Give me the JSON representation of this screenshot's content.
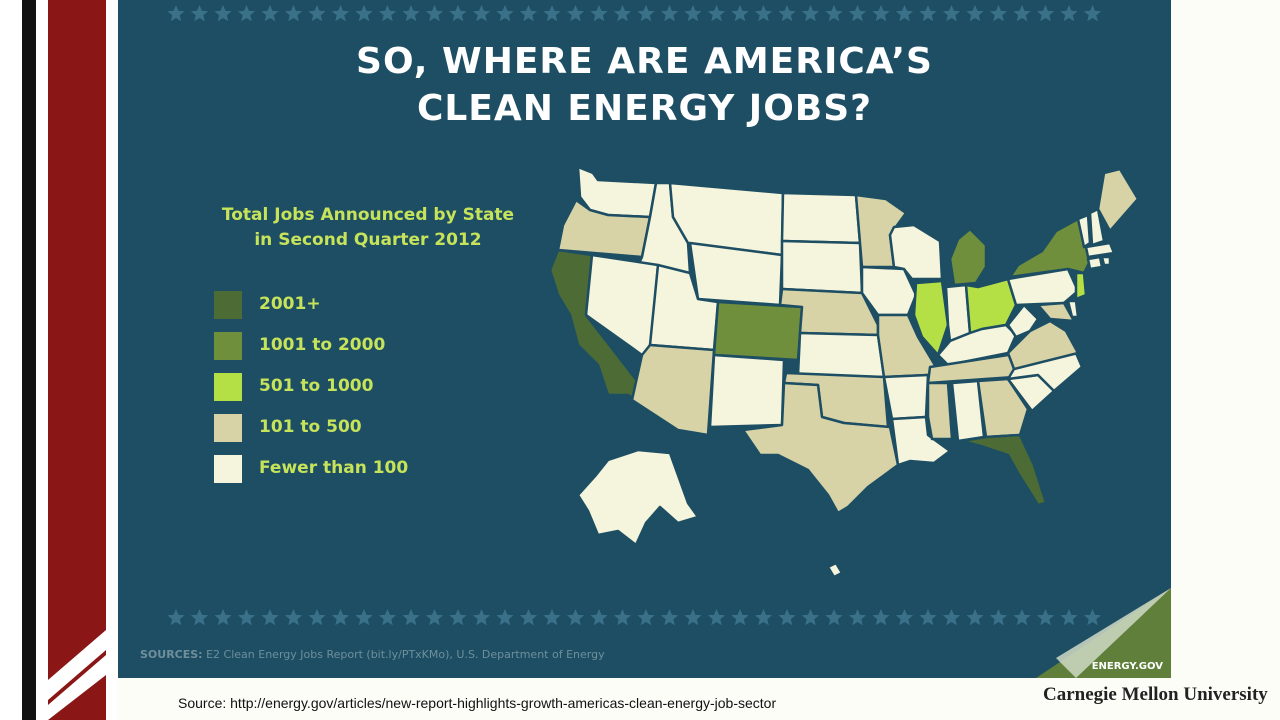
{
  "title_line1": "SO, WHERE ARE AMERICA’S",
  "title_line2": "CLEAN ENERGY JOBS?",
  "legend": {
    "title_line1": "Total Jobs Announced by State",
    "title_line2": "in Second Quarter 2012",
    "items": [
      {
        "label": "2001+",
        "color": "#4d6b35"
      },
      {
        "label": "1001 to 2000",
        "color": "#6f8f3c"
      },
      {
        "label": "501 to 1000",
        "color": "#b5e045"
      },
      {
        "label": "101 to 500",
        "color": "#d7d3a7"
      },
      {
        "label": "Fewer than 100",
        "color": "#f5f4dc"
      }
    ]
  },
  "states_by_category": {
    "2001+": [
      "California",
      "Florida"
    ],
    "1001 to 2000": [
      "Colorado",
      "Michigan",
      "New York"
    ],
    "501 to 1000": [
      "Illinois",
      "Ohio",
      "New Jersey"
    ],
    "101 to 500": [
      "Oregon",
      "Arizona",
      "Texas",
      "Oklahoma",
      "Nebraska",
      "Minnesota",
      "Missouri",
      "Mississippi",
      "Georgia",
      "Tennessee",
      "Virginia",
      "Maine",
      "Maryland"
    ],
    "Fewer than 100": [
      "all other states"
    ]
  },
  "sources_label": "SOURCES:",
  "sources_text": "E2 Clean Energy Jobs Report (bit.ly/PTxKMo), U.S. Department of Energy",
  "logo_text": "ENERGY.GOV",
  "source_line": "Source: http://energy.gov/articles/new-report-highlights-growth-americas-clean-energy-job-sector",
  "university": "Carnegie Mellon University",
  "colors": {
    "background": "#1d4e63",
    "legend_text": "#c6e35a",
    "border_red": "#8b1616"
  }
}
